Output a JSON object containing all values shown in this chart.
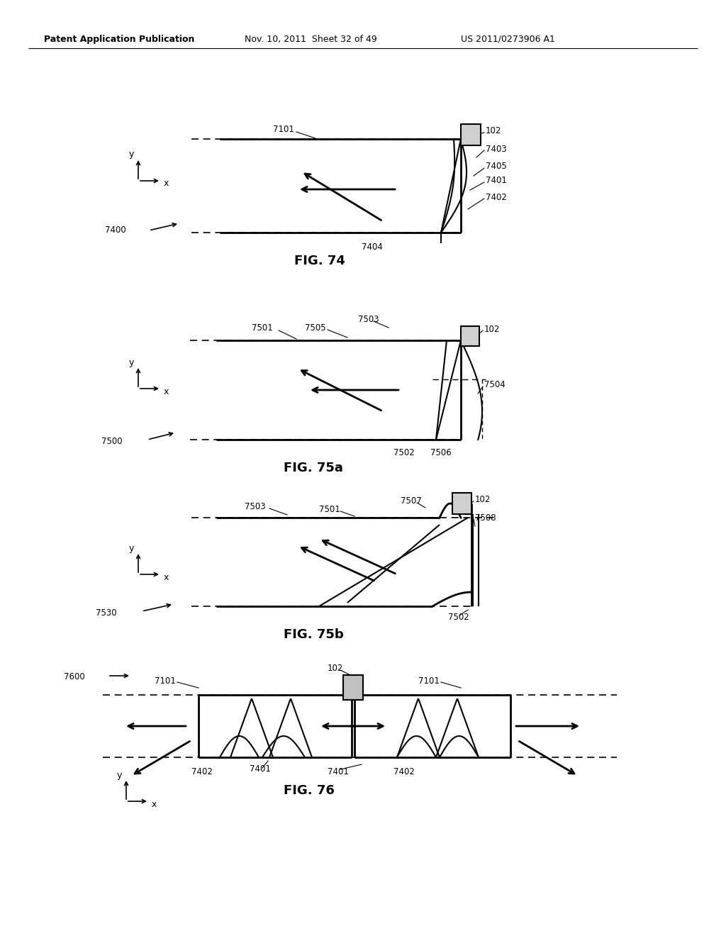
{
  "bg_color": "#ffffff",
  "header_left": "Patent Application Publication",
  "header_mid": "Nov. 10, 2011  Sheet 32 of 49",
  "header_right": "US 2011/0273906 A1",
  "fig74_label": "FIG. 74",
  "fig75a_label": "FIG. 75a",
  "fig75b_label": "FIG. 75b",
  "fig76_label": "FIG. 76"
}
